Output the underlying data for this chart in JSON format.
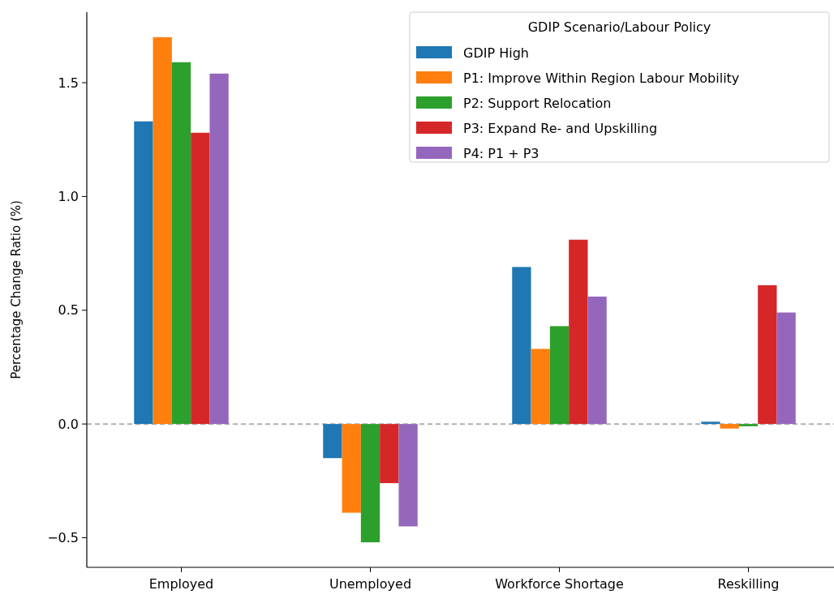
{
  "chart_data": {
    "type": "bar",
    "ylabel": "Percentage Change Ratio (%)",
    "legend_title": "GDIP Scenario/Labour Policy",
    "legend": "top right",
    "categories": [
      "Employed",
      "Unemployed",
      "Workforce Shortage",
      "Reskilling"
    ],
    "series": [
      {
        "name": "GDIP High",
        "color": "#1f77b4",
        "values": [
          1.33,
          -0.15,
          0.69,
          0.01
        ]
      },
      {
        "name": "P1: Improve Within Region Labour Mobility",
        "color": "#ff7f0e",
        "values": [
          1.7,
          -0.39,
          0.33,
          -0.02
        ]
      },
      {
        "name": "P2: Support Relocation",
        "color": "#2ca02c",
        "values": [
          1.59,
          -0.52,
          0.43,
          -0.01
        ]
      },
      {
        "name": "P3: Expand Re- and Upskilling",
        "color": "#d62728",
        "values": [
          1.28,
          -0.26,
          0.81,
          0.61
        ]
      },
      {
        "name": "P4: P1 + P3",
        "color": "#9467bd",
        "values": [
          1.54,
          -0.45,
          0.56,
          0.49
        ]
      }
    ],
    "ylim": [
      -0.63,
      1.81
    ],
    "yticks": [
      {
        "value": -0.5,
        "label": "−0.5"
      },
      {
        "value": 0,
        "label": "0.0"
      },
      {
        "value": 0.5,
        "label": "0.5"
      },
      {
        "value": 1,
        "label": "1.0"
      },
      {
        "value": 1.5,
        "label": "1.5"
      }
    ],
    "ref_lines": [
      {
        "axis": "y",
        "value": 0,
        "color": "#b0b0b0",
        "line_style": "dashed"
      }
    ],
    "grid": false
  }
}
